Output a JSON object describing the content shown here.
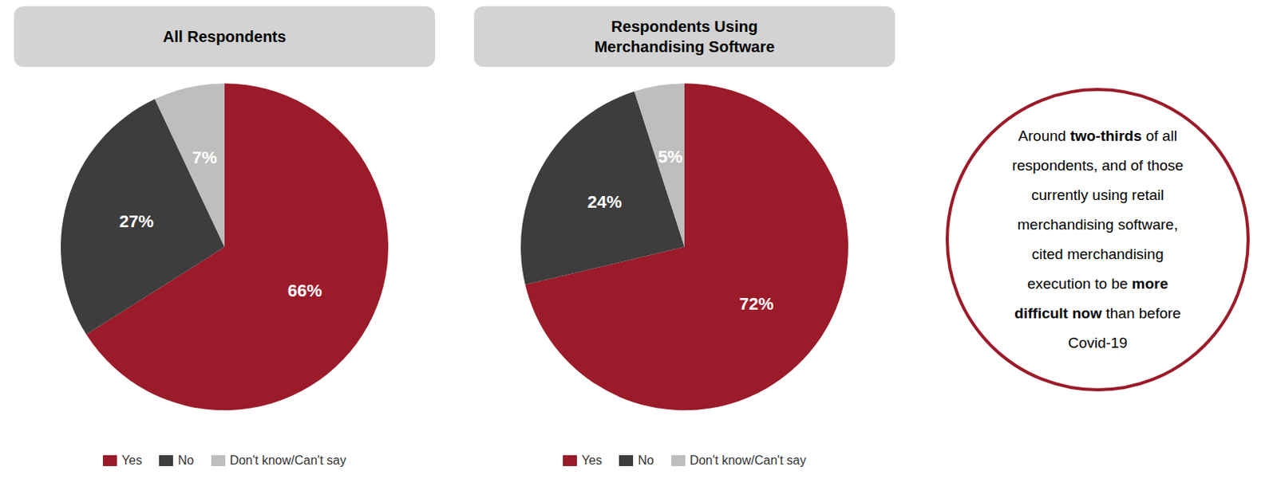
{
  "chart_data": [
    {
      "type": "pie",
      "title": "All Respondents",
      "categories": [
        "Yes",
        "No",
        "Don't know/Can't say"
      ],
      "values": [
        66,
        27,
        7
      ],
      "value_labels": [
        "66%",
        "27%",
        "7%"
      ],
      "colors": [
        "#9B1B2A",
        "#3D3D3D",
        "#BEBEBE"
      ],
      "data_labels": true,
      "legend": "bottom"
    },
    {
      "type": "pie",
      "title": "Respondents Using\nMerchandising Software",
      "categories": [
        "Yes",
        "No",
        "Don't know/Can't say"
      ],
      "values": [
        72,
        24,
        5
      ],
      "value_labels": [
        "72%",
        "24%",
        "5%"
      ],
      "colors": [
        "#9B1B2A",
        "#3D3D3D",
        "#BEBEBE"
      ],
      "data_labels": true,
      "legend": "bottom"
    }
  ],
  "annotation": {
    "color": "#9B1B2A",
    "lines": [
      [
        {
          "text": "Around ",
          "bold": false
        },
        {
          "text": "two-thirds",
          "bold": true
        },
        {
          "text": " of all",
          "bold": false
        }
      ],
      [
        {
          "text": "respondents, and of those",
          "bold": false
        }
      ],
      [
        {
          "text": "currently using retail",
          "bold": false
        }
      ],
      [
        {
          "text": "merchandising software,",
          "bold": false
        }
      ],
      [
        {
          "text": "cited merchandising",
          "bold": false
        }
      ],
      [
        {
          "text": "execution to be ",
          "bold": false
        },
        {
          "text": "more",
          "bold": true
        }
      ],
      [
        {
          "text": "difficult now",
          "bold": true
        },
        {
          "text": " than before",
          "bold": false
        }
      ],
      [
        {
          "text": "Covid-19",
          "bold": false
        }
      ]
    ]
  }
}
